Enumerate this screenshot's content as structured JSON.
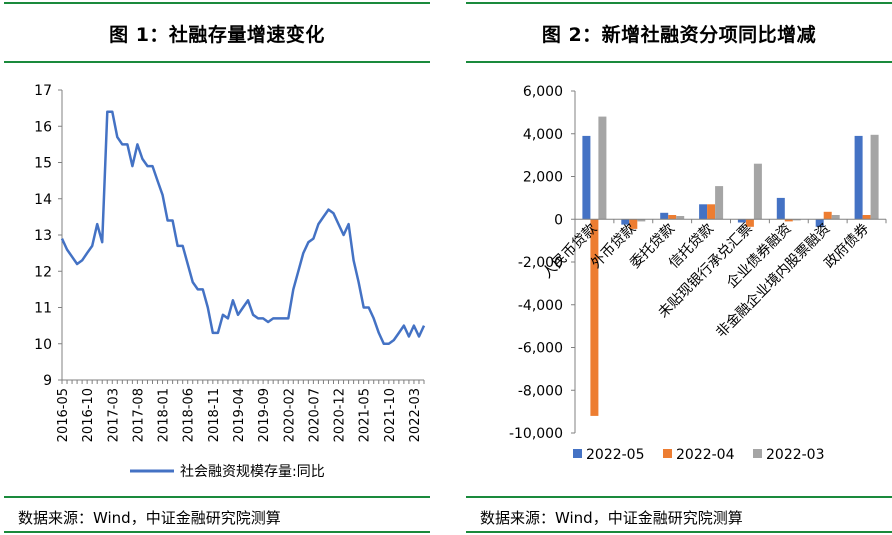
{
  "figure1": {
    "title": "图 1：社融存量增速变化",
    "source": "数据来源：Wind，中证金融研究院测算",
    "chart_data": {
      "type": "line",
      "title": "图 1：社融存量增速变化",
      "xlabel": "",
      "ylabel": "",
      "ylim": [
        9,
        17
      ],
      "y_ticks": [
        "17",
        "16",
        "15",
        "14",
        "13",
        "12",
        "11",
        "10",
        "9"
      ],
      "x_tick_labels": [
        "2016-05",
        "2016-10",
        "2017-03",
        "2017-08",
        "2018-01",
        "2018-06",
        "2018-11",
        "2019-04",
        "2019-09",
        "2020-02",
        "2020-07",
        "2020-12",
        "2021-05",
        "2021-10",
        "2022-03"
      ],
      "legend_position": "bottom",
      "grid": false,
      "series": [
        {
          "name": "社会融资规模存量:同比",
          "color": "#4472C4",
          "x": [
            "2016-05",
            "2016-06",
            "2016-07",
            "2016-08",
            "2016-09",
            "2016-10",
            "2016-11",
            "2016-12",
            "2017-01",
            "2017-02",
            "2017-03",
            "2017-04",
            "2017-05",
            "2017-06",
            "2017-07",
            "2017-08",
            "2017-09",
            "2017-10",
            "2017-11",
            "2017-12",
            "2018-01",
            "2018-02",
            "2018-03",
            "2018-04",
            "2018-05",
            "2018-06",
            "2018-07",
            "2018-08",
            "2018-09",
            "2018-10",
            "2018-11",
            "2018-12",
            "2019-01",
            "2019-02",
            "2019-03",
            "2019-04",
            "2019-05",
            "2019-06",
            "2019-07",
            "2019-08",
            "2019-09",
            "2019-10",
            "2019-11",
            "2019-12",
            "2020-01",
            "2020-02",
            "2020-03",
            "2020-04",
            "2020-05",
            "2020-06",
            "2020-07",
            "2020-08",
            "2020-09",
            "2020-10",
            "2020-11",
            "2020-12",
            "2021-01",
            "2021-02",
            "2021-03",
            "2021-04",
            "2021-05",
            "2021-06",
            "2021-07",
            "2021-08",
            "2021-09",
            "2021-10",
            "2021-11",
            "2021-12",
            "2022-01",
            "2022-02",
            "2022-03",
            "2022-04",
            "2022-05"
          ],
          "values": [
            12.9,
            12.6,
            12.4,
            12.2,
            12.3,
            12.5,
            12.7,
            13.3,
            12.8,
            16.4,
            16.4,
            15.7,
            15.5,
            15.5,
            14.9,
            15.5,
            15.1,
            14.9,
            14.9,
            14.5,
            14.1,
            13.4,
            13.4,
            12.7,
            12.7,
            12.2,
            11.7,
            11.5,
            11.5,
            11.0,
            10.3,
            10.3,
            10.8,
            10.7,
            11.2,
            10.8,
            11.0,
            11.2,
            10.8,
            10.7,
            10.7,
            10.6,
            10.7,
            10.7,
            10.7,
            10.7,
            11.5,
            12.0,
            12.5,
            12.8,
            12.9,
            13.3,
            13.5,
            13.7,
            13.6,
            13.3,
            13.0,
            13.3,
            12.3,
            11.7,
            11.0,
            11.0,
            10.7,
            10.3,
            10.0,
            10.0,
            10.1,
            10.3,
            10.5,
            10.2,
            10.5,
            10.2,
            10.5
          ]
        }
      ]
    }
  },
  "figure2": {
    "title": "图 2：新增社融资分项同比增减",
    "source": "数据来源：Wind，中证金融研究院测算",
    "chart_data": {
      "type": "bar",
      "title": "图 2：新增社融资分项同比增减",
      "xlabel": "",
      "ylabel": "",
      "ylim": [
        -10000,
        6000
      ],
      "y_ticks": [
        "6,000",
        "4,000",
        "2,000",
        "0",
        "-2,000",
        "-4,000",
        "-6,000",
        "-8,000",
        "-10,000"
      ],
      "categories": [
        "人民币贷款",
        "外币贷款",
        "委托贷款",
        "信托贷款",
        "未贴现银行承兑汇票",
        "企业债券融资",
        "非金融企业境内股票融资",
        "政府债券"
      ],
      "legend_position": "bottom",
      "grid": false,
      "series": [
        {
          "name": "2022-05",
          "color": "#4472C4",
          "values": [
            3900,
            -250,
            300,
            700,
            -150,
            1000,
            -350,
            3900
          ]
        },
        {
          "name": "2022-04",
          "color": "#ED7D31",
          "values": [
            -9200,
            -450,
            200,
            700,
            -350,
            -100,
            350,
            200
          ]
        },
        {
          "name": "2022-03",
          "color": "#A5A5A5",
          "values": [
            4800,
            -100,
            150,
            1550,
            2600,
            -50,
            200,
            3950
          ]
        }
      ]
    }
  }
}
